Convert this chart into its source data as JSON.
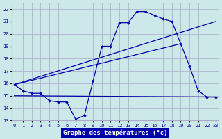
{
  "xlabel": "Graphe des températures (°c)",
  "ylim": [
    13,
    22.5
  ],
  "xlim": [
    -0.3,
    23.3
  ],
  "yticks": [
    13,
    14,
    15,
    16,
    17,
    18,
    19,
    20,
    21,
    22
  ],
  "xticks": [
    0,
    1,
    2,
    3,
    4,
    5,
    6,
    7,
    8,
    9,
    10,
    11,
    12,
    13,
    14,
    15,
    16,
    17,
    18,
    19,
    20,
    21,
    22,
    23
  ],
  "background_color": "#cce8e8",
  "grid_color": "#aaaacc",
  "line_color": "#0000aa",
  "line1_x": [
    0,
    1,
    2,
    3,
    4,
    5,
    6,
    7,
    8,
    9,
    10,
    11,
    12,
    13,
    14,
    15,
    16,
    17,
    18,
    19,
    20,
    21,
    22,
    23
  ],
  "line1_y": [
    15.9,
    15.4,
    15.2,
    15.2,
    14.6,
    14.5,
    14.5,
    13.1,
    13.4,
    16.2,
    19.0,
    19.0,
    20.9,
    20.9,
    21.8,
    21.8,
    21.5,
    21.2,
    21.0,
    19.2,
    17.4,
    15.4,
    14.9,
    14.9
  ],
  "line2_x": [
    0,
    23
  ],
  "line2_y": [
    15.0,
    14.9
  ],
  "line3_x": [
    0,
    23
  ],
  "line3_y": [
    15.9,
    21.0
  ],
  "line4_x": [
    0,
    19
  ],
  "line4_y": [
    15.9,
    19.2
  ]
}
